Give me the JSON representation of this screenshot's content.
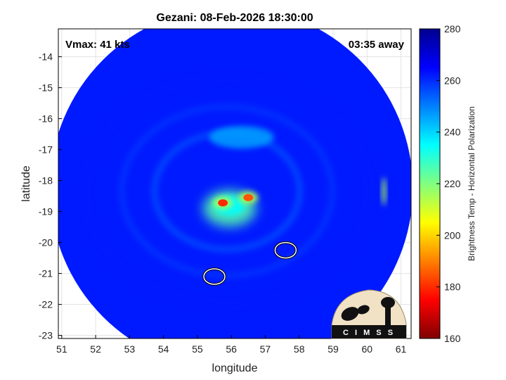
{
  "chart_data": {
    "type": "heatmap",
    "title": "Gezani: 08-Feb-2026 18:30:00",
    "xlabel": "longitude",
    "ylabel": "latitude",
    "xlim": [
      50.9,
      61.3
    ],
    "ylim": [
      -23.1,
      -13.1
    ],
    "x_ticks": [
      "51",
      "52",
      "53",
      "54",
      "55",
      "56",
      "57",
      "58",
      "59",
      "60",
      "61"
    ],
    "y_ticks": [
      "-14",
      "-15",
      "-16",
      "-17",
      "-18",
      "-19",
      "-20",
      "-21",
      "-22",
      "-23"
    ],
    "grid": true,
    "colorbar": {
      "label": "Brightness Temp - Horizontal Polarization",
      "range": [
        160,
        280
      ],
      "ticks": [
        "160",
        "180",
        "200",
        "220",
        "240",
        "260",
        "280"
      ],
      "colors": [
        "#7f0000",
        "#ff0000",
        "#ff8000",
        "#ffff00",
        "#80ff80",
        "#00ffff",
        "#0080ff",
        "#0000ff",
        "#00008f"
      ]
    },
    "annotations": {
      "vmax": "Vmax: 41 kts",
      "time_away": "03:35 away"
    },
    "swath": {
      "center": [
        56.0,
        -18.25
      ],
      "radius_deg": 5.35,
      "background_temp": 262
    },
    "features": [
      {
        "name": "eyewall-west",
        "lon": 55.75,
        "lat": -18.72,
        "min_temp": 180
      },
      {
        "name": "eyewall-east",
        "lon": 56.5,
        "lat": -18.55,
        "min_temp": 185
      },
      {
        "name": "inner-core",
        "lon": 55.95,
        "lat": -18.9,
        "min_temp": 225
      },
      {
        "name": "north-band",
        "lon": 56.3,
        "lat": -16.6,
        "min_temp": 245
      },
      {
        "name": "east-cells",
        "lon": 60.5,
        "lat": -18.35,
        "min_temp": 215
      }
    ],
    "contours": [
      {
        "name": "island-north",
        "lon": 57.6,
        "lat": -20.25
      },
      {
        "name": "island-south",
        "lon": 55.5,
        "lat": -21.1
      }
    ]
  },
  "logo": {
    "text": "C I M S S"
  }
}
